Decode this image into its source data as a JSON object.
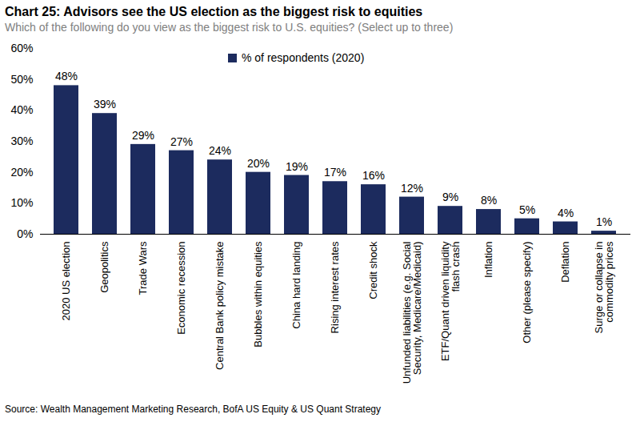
{
  "chart_data": {
    "type": "bar",
    "title": "Chart 25: Advisors see the US election as the biggest risk to equities",
    "subtitle": "Which of the following do you view as  the biggest risk to U.S. equities? (Select up to three)",
    "source": "Source:  Wealth Management Marketing Research, BofA US Equity & US Quant Strategy",
    "categories": [
      "2020 US election",
      "Geopolitics",
      "Trade Wars",
      "Economic recession",
      "Central Bank policy mistake",
      "Bubbles within equities",
      "China hard landing",
      "Rising interest rates",
      "Credit shock",
      "Unfunded liabilities (e.g. Social Security, Medicare/Medicaid)",
      "ETF/Quant driven liquidity flash crash",
      "Inflation",
      "Other (please specify)",
      "Deflation",
      "Surge or collapse in commodity prices"
    ],
    "series": [
      {
        "name": "% of respondents (2020)",
        "color": "#1c2b5e",
        "values": [
          48,
          39,
          29,
          27,
          24,
          20,
          19,
          17,
          16,
          12,
          9,
          8,
          5,
          4,
          1
        ],
        "value_labels": [
          "48%",
          "39%",
          "29%",
          "27%",
          "24%",
          "20%",
          "19%",
          "17%",
          "16%",
          "12%",
          "9%",
          "8%",
          "5%",
          "4%",
          "1%"
        ]
      }
    ],
    "ylim": [
      0,
      60
    ],
    "yticks": [
      {
        "value": 0,
        "label": "0%"
      },
      {
        "value": 10,
        "label": "10%"
      },
      {
        "value": 20,
        "label": "20%"
      },
      {
        "value": 30,
        "label": "30%"
      },
      {
        "value": 40,
        "label": "40%"
      },
      {
        "value": 50,
        "label": "50%"
      },
      {
        "value": 60,
        "label": "60%"
      }
    ],
    "grid": false,
    "data_labels": true,
    "legend": "top"
  }
}
